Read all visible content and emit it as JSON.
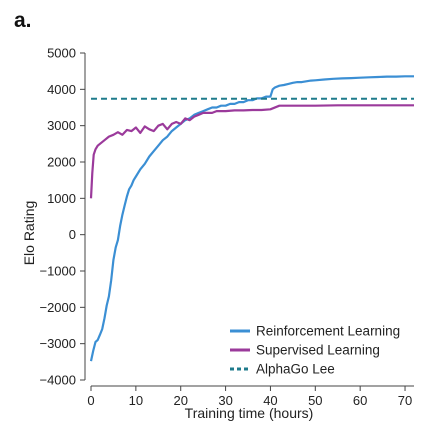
{
  "chart_data": {
    "type": "line",
    "panel_label": "a.",
    "title": "",
    "xlabel": "Training time (hours)",
    "ylabel": "Elo Rating",
    "xlim": [
      0,
      72
    ],
    "ylim": [
      -4000,
      5000
    ],
    "xticks": [
      0,
      10,
      20,
      30,
      40,
      50,
      60,
      70
    ],
    "yticks": [
      -4000,
      -3000,
      -2000,
      -1000,
      0,
      1000,
      2000,
      3000,
      4000,
      5000
    ],
    "ytick_labels": [
      "−4000",
      "−3000",
      "−2000",
      "−1000",
      "0",
      "1000",
      "2000",
      "3000",
      "4000",
      "5000"
    ],
    "grid": false,
    "legend_position": "bottom-right",
    "series": [
      {
        "name": "Reinforcement Learning",
        "color": "#3b8fd4",
        "style": "solid",
        "x": [
          0,
          0.5,
          1,
          1.5,
          2,
          2.5,
          3,
          3.5,
          4,
          4.5,
          5,
          5.5,
          6,
          6.5,
          7,
          7.5,
          8,
          8.5,
          9,
          9.5,
          10,
          11,
          12,
          13,
          14,
          15,
          16,
          17,
          18,
          19,
          20,
          21,
          22,
          23,
          24,
          25,
          26,
          27,
          28,
          29,
          30,
          31,
          32,
          33,
          34,
          35,
          36,
          37,
          38,
          39,
          40,
          40.5,
          41,
          42,
          43,
          44,
          45,
          46,
          47,
          48,
          49,
          50,
          52,
          54,
          56,
          58,
          60,
          62,
          64,
          66,
          68,
          70,
          72
        ],
        "y": [
          -3480,
          -3200,
          -2950,
          -2900,
          -2750,
          -2600,
          -2300,
          -1950,
          -1700,
          -1250,
          -700,
          -350,
          -150,
          250,
          550,
          800,
          1050,
          1250,
          1350,
          1500,
          1600,
          1800,
          1950,
          2150,
          2300,
          2450,
          2600,
          2700,
          2850,
          2950,
          3050,
          3150,
          3200,
          3300,
          3350,
          3400,
          3450,
          3500,
          3500,
          3550,
          3550,
          3600,
          3600,
          3650,
          3650,
          3700,
          3700,
          3750,
          3750,
          3800,
          3800,
          4000,
          4050,
          4100,
          4120,
          4150,
          4180,
          4200,
          4200,
          4220,
          4240,
          4250,
          4270,
          4290,
          4300,
          4310,
          4320,
          4330,
          4340,
          4350,
          4350,
          4360,
          4360
        ]
      },
      {
        "name": "Supervised Learning",
        "color": "#9b3a9b",
        "style": "solid",
        "x": [
          0,
          0.3,
          0.6,
          1,
          1.5,
          2,
          3,
          4,
          5,
          6,
          7,
          8,
          9,
          10,
          11,
          12,
          13,
          14,
          15,
          16,
          17,
          18,
          19,
          20,
          21,
          22,
          23,
          24,
          25,
          26,
          27,
          28,
          30,
          32,
          34,
          36,
          38,
          40,
          42,
          45,
          50,
          55,
          60,
          65,
          70,
          72
        ],
        "y": [
          1000,
          1700,
          2200,
          2350,
          2450,
          2500,
          2600,
          2700,
          2750,
          2820,
          2750,
          2880,
          2850,
          2950,
          2800,
          2980,
          2900,
          2850,
          3000,
          3050,
          2900,
          3050,
          3100,
          3050,
          3200,
          3150,
          3250,
          3300,
          3350,
          3350,
          3350,
          3400,
          3400,
          3420,
          3420,
          3430,
          3430,
          3450,
          3550,
          3550,
          3550,
          3560,
          3560,
          3560,
          3560,
          3560
        ]
      },
      {
        "name": "AlphaGo Lee",
        "color": "#1f7b8c",
        "style": "dashed",
        "x": [
          0,
          72
        ],
        "y": [
          3739,
          3739
        ]
      }
    ]
  }
}
